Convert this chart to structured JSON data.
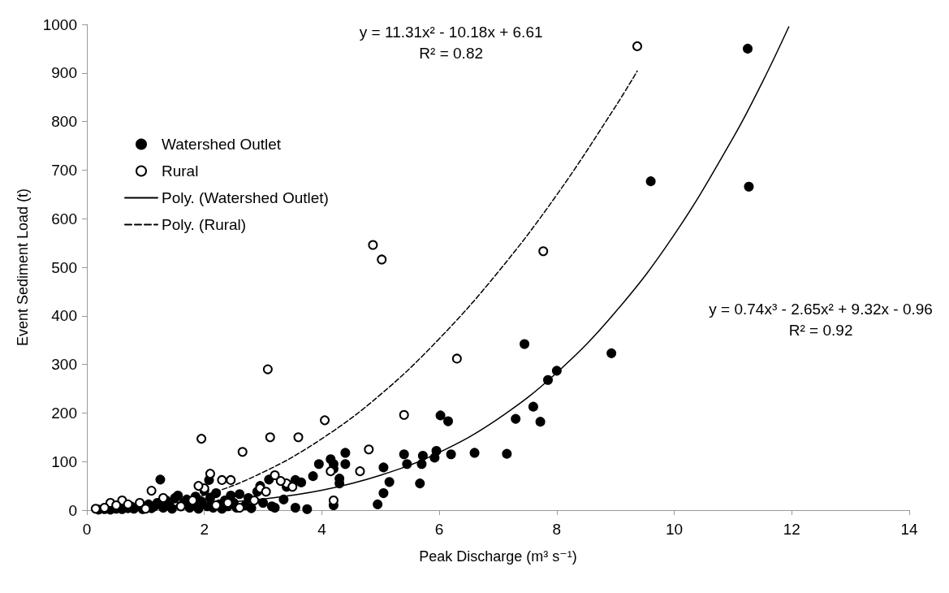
{
  "chart_data": {
    "type": "scatter",
    "xlabel": "Peak Discharge (m³ s⁻¹)",
    "ylabel": "Event Sediment Load (t)",
    "xlim": [
      0,
      14
    ],
    "xticks": [
      0,
      2,
      4,
      6,
      8,
      10,
      12,
      14
    ],
    "ylim": [
      0,
      1000
    ],
    "yticks": [
      0,
      100,
      200,
      300,
      400,
      500,
      600,
      700,
      800,
      900,
      1000
    ],
    "grid": false,
    "legend": "top left",
    "series": [
      {
        "name": "Watershed Outlet",
        "marker": "circle",
        "color": "#000000",
        "x": [
          11.25,
          9.6,
          11.27,
          7.45,
          8.93,
          8.0,
          7.85,
          7.6,
          7.3,
          7.72,
          6.02,
          6.15,
          5.95,
          5.92,
          5.7,
          5.72,
          6.2,
          6.6,
          7.15,
          5.4,
          5.45,
          5.05,
          5.15,
          5.05,
          4.95,
          5.67,
          4.4,
          4.15,
          4.2,
          4.4,
          4.2,
          3.95,
          3.85,
          4.3,
          4.3,
          4.2,
          3.65,
          3.55,
          3.4,
          3.35,
          3.55,
          3.75,
          3.1,
          3.2,
          2.95,
          2.75,
          2.6,
          0.2,
          0.3,
          0.4,
          0.5,
          0.6,
          0.7,
          0.75,
          0.8,
          0.95,
          1.05,
          1.1,
          1.15,
          1.2,
          1.25,
          1.3,
          1.35,
          1.4,
          1.45,
          1.5,
          1.55,
          1.6,
          1.65,
          1.7,
          1.75,
          1.8,
          1.85,
          1.9,
          1.95,
          2.0,
          2.05,
          2.08,
          2.1,
          2.15,
          2.2,
          2.25,
          2.3,
          2.35,
          2.4,
          2.45,
          2.5,
          2.55,
          2.7,
          2.8,
          2.9,
          3.0,
          3.15
        ],
        "values": [
          950,
          677,
          666,
          342,
          323,
          287,
          268,
          213,
          188,
          182,
          195,
          183,
          122,
          108,
          95,
          112,
          115,
          118,
          116,
          115,
          95,
          88,
          58,
          35,
          12,
          55,
          118,
          105,
          95,
          95,
          85,
          95,
          70,
          55,
          65,
          10,
          57,
          62,
          48,
          22,
          5,
          2,
          63,
          5,
          50,
          25,
          33,
          1,
          2,
          1,
          3,
          2,
          4,
          8,
          3,
          2,
          12,
          4,
          8,
          15,
          63,
          5,
          20,
          10,
          3,
          25,
          30,
          8,
          15,
          22,
          5,
          12,
          28,
          3,
          18,
          40,
          8,
          62,
          25,
          5,
          35,
          12,
          3,
          20,
          8,
          30,
          15,
          5,
          10,
          4,
          38,
          15,
          8
        ]
      },
      {
        "name": "Rural",
        "marker": "circle",
        "color": "#ffffff",
        "x": [
          9.37,
          4.87,
          5.02,
          7.77,
          6.3,
          3.08,
          5.4,
          4.05,
          3.6,
          3.12,
          1.95,
          4.8,
          2.65,
          4.65,
          4.2,
          4.15,
          3.4,
          3.2,
          2.1,
          2.3,
          2.45,
          2.0,
          2.95,
          3.05,
          1.9,
          1.1,
          0.6,
          0.4,
          1.3,
          2.4,
          3.5,
          0.15,
          0.3,
          0.5,
          0.7,
          0.9,
          1.0,
          1.6,
          1.8,
          2.2,
          2.6,
          2.85,
          3.3
        ],
        "values": [
          955,
          546,
          516,
          533,
          312,
          290,
          196,
          185,
          150,
          150,
          147,
          125,
          120,
          80,
          20,
          80,
          55,
          72,
          75,
          62,
          62,
          45,
          45,
          38,
          50,
          40,
          20,
          15,
          25,
          15,
          48,
          3,
          5,
          10,
          12,
          15,
          3,
          8,
          20,
          10,
          5,
          20,
          60
        ]
      },
      {
        "name": "Poly. (Watershed Outlet)",
        "type": "line",
        "marker": "none",
        "line_style": "solid",
        "color": "#000000",
        "x": [
          0.2,
          1,
          2,
          3,
          4,
          5,
          6,
          7,
          8,
          9,
          10,
          11,
          11.5,
          11.95
        ],
        "values": [
          1,
          6,
          13,
          23,
          41,
          72,
          119,
          188,
          283,
          408,
          567,
          766,
          881,
          995
        ]
      },
      {
        "name": "Poly. (Rural)",
        "type": "line",
        "marker": "none",
        "line_style": "dashed",
        "color": "#000000",
        "x": [
          0.1,
          1,
          2,
          3,
          4,
          5,
          6,
          7,
          8,
          9,
          9.37
        ],
        "values": [
          6,
          8,
          31,
          78,
          147,
          238,
          353,
          490,
          649,
          831,
          904
        ]
      }
    ],
    "annotations": [
      "y = 11.31x² - 10.18x + 6.61\nR² = 0.82",
      "y = 0.74x³ - 2.65x² + 9.32x - 0.96\nR² = 0.92"
    ]
  }
}
